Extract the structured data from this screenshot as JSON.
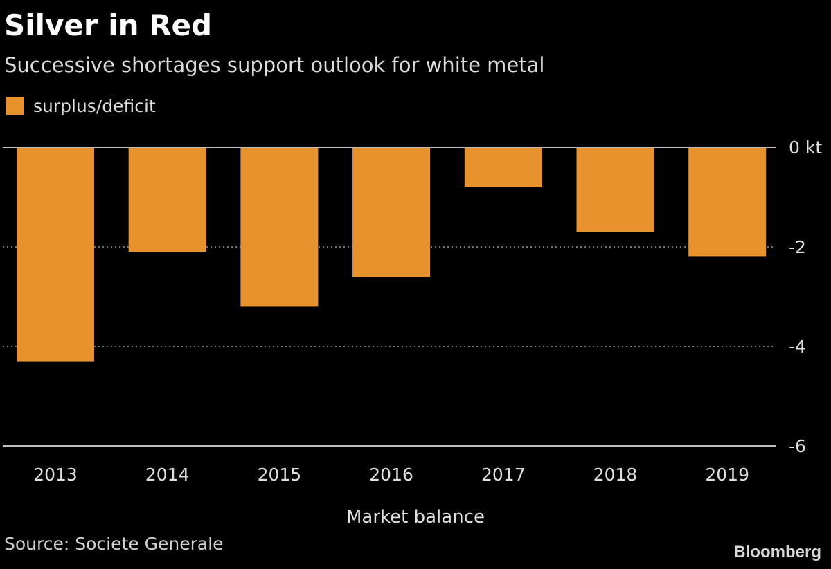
{
  "chart_data": {
    "type": "bar",
    "title": "Silver in Red",
    "subtitle": "Successive shortages support outlook for white metal",
    "categories": [
      "2013",
      "2014",
      "2015",
      "2016",
      "2017",
      "2018",
      "2019"
    ],
    "series": [
      {
        "name": "surplus/deficit",
        "values": [
          -4.3,
          -2.1,
          -3.2,
          -2.6,
          -0.8,
          -1.7,
          -2.2
        ],
        "color": "#e8922e"
      }
    ],
    "xlabel": "Market balance",
    "ylabel": "",
    "ylim": [
      -6,
      0
    ],
    "yticks": [
      0,
      -2,
      -4,
      -6
    ],
    "ytick_labels": [
      "0 kt",
      "-2",
      "-4",
      "-6"
    ],
    "grid": true,
    "legend_position": "top-left",
    "source": "Source: Societe Generale",
    "brand": "Bloomberg"
  }
}
